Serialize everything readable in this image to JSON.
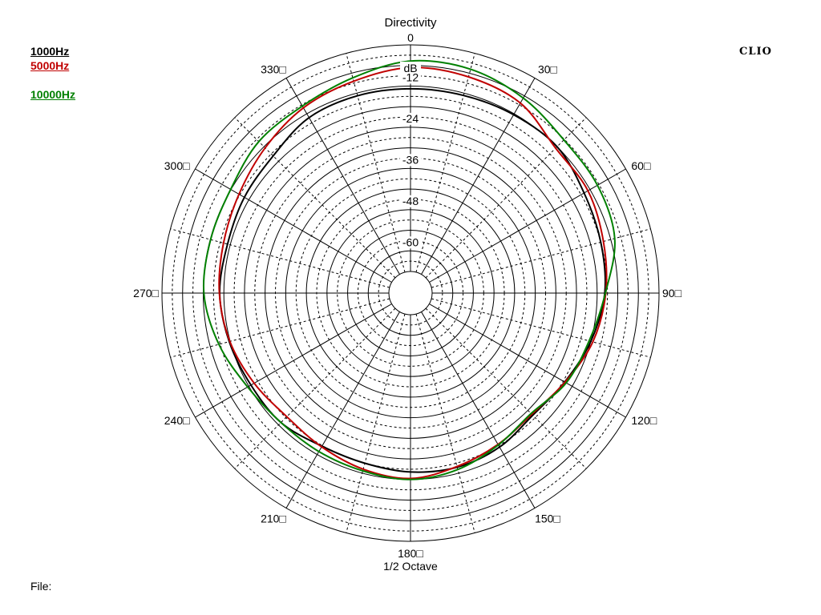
{
  "chart_data": {
    "type": "polar",
    "title": "Directivity",
    "unit_label": "dB",
    "bottom_label": "1/2 Octave",
    "radial_ticks": [
      0,
      -12,
      -24,
      -36,
      -48,
      -60
    ],
    "radial_range": [
      -66,
      0
    ],
    "angle_ticks": [
      0,
      30,
      60,
      90,
      120,
      150,
      180,
      210,
      240,
      270,
      300,
      330
    ],
    "angle_tick_labels": [
      "0",
      "30□",
      "60□",
      "90□",
      "120□",
      "150□",
      "180□",
      "210□",
      "240□",
      "270□",
      "300□",
      "330□"
    ],
    "angles": [
      0,
      15,
      30,
      45,
      60,
      75,
      90,
      105,
      120,
      135,
      150,
      165,
      180,
      195,
      210,
      225,
      240,
      255,
      270,
      285,
      300,
      315,
      330,
      345,
      360
    ],
    "series": [
      {
        "name": "1000Hz",
        "color": "#000000",
        "values": [
          -12.8,
          -12.7,
          -12.3,
          -12,
          -14,
          -15,
          -15.8,
          -18,
          -20.5,
          -22,
          -20.5,
          -19.8,
          -20.2,
          -21,
          -20.8,
          -19,
          -18.7,
          -17.7,
          -16.8,
          -17.2,
          -16.5,
          -15.8,
          -13.3,
          -12.8,
          -12.8
        ]
      },
      {
        "name": "5000Hz",
        "color": "#c00000",
        "values": [
          -6.6,
          -7.1,
          -8.4,
          -12.6,
          -12.7,
          -14.2,
          -15.5,
          -17.4,
          -20.4,
          -22.4,
          -21.4,
          -20,
          -18.3,
          -19.2,
          -20.6,
          -21.4,
          -19.8,
          -17.9,
          -16.7,
          -16,
          -14.7,
          -12.5,
          -10,
          -8.4,
          -6.6
        ]
      },
      {
        "name": "10000Hz",
        "color": "#008000",
        "values": [
          -4.7,
          -4.8,
          -6.7,
          -9.2,
          -9.5,
          -10.8,
          -15.6,
          -18.5,
          -20,
          -22.7,
          -21.2,
          -19.1,
          -18,
          -18.7,
          -19,
          -19,
          -17.6,
          -14.6,
          -12.2,
          -12.1,
          -11.9,
          -9.9,
          -9.4,
          -7.4,
          -4.7
        ]
      }
    ]
  },
  "legend": {
    "items": [
      "1000Hz",
      "5000Hz",
      "10000Hz"
    ]
  },
  "brand": "CLIO",
  "footer": {
    "file_label": "File:"
  }
}
